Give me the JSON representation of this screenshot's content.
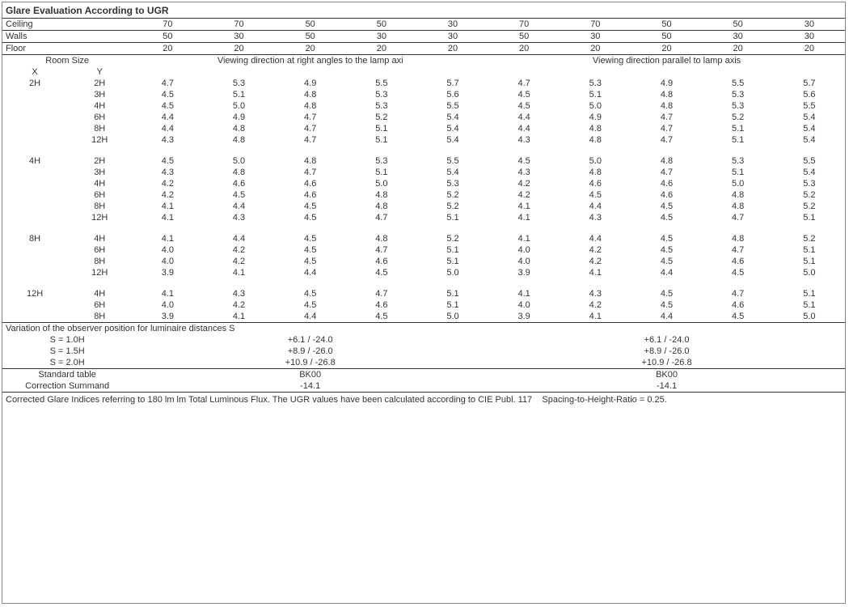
{
  "title": "Glare Evaluation According to UGR",
  "header_rows": {
    "ceiling": {
      "label": "Ceiling",
      "left": [
        "70",
        "70",
        "50",
        "50",
        "30"
      ],
      "right": [
        "70",
        "70",
        "50",
        "50",
        "30"
      ]
    },
    "walls": {
      "label": "Walls",
      "left": [
        "50",
        "30",
        "50",
        "30",
        "30"
      ],
      "right": [
        "50",
        "30",
        "50",
        "30",
        "30"
      ]
    },
    "floor": {
      "label": "Floor",
      "left": [
        "20",
        "20",
        "20",
        "20",
        "20"
      ],
      "right": [
        "20",
        "20",
        "20",
        "20",
        "20"
      ]
    }
  },
  "room_size_label": "Room Size",
  "x_label": "X",
  "y_label": "Y",
  "view_right_angles": "Viewing direction at right angles to the lamp axi",
  "view_parallel": "Viewing direction parallel to lamp axis",
  "groups": [
    {
      "x": "2H",
      "rows": [
        {
          "y": "2H",
          "l": [
            "4.7",
            "5.3",
            "4.9",
            "5.5",
            "5.7"
          ],
          "r": [
            "4.7",
            "5.3",
            "4.9",
            "5.5",
            "5.7"
          ]
        },
        {
          "y": "3H",
          "l": [
            "4.5",
            "5.1",
            "4.8",
            "5.3",
            "5.6"
          ],
          "r": [
            "4.5",
            "5.1",
            "4.8",
            "5.3",
            "5.6"
          ]
        },
        {
          "y": "4H",
          "l": [
            "4.5",
            "5.0",
            "4.8",
            "5.3",
            "5.5"
          ],
          "r": [
            "4.5",
            "5.0",
            "4.8",
            "5.3",
            "5.5"
          ]
        },
        {
          "y": "6H",
          "l": [
            "4.4",
            "4.9",
            "4.7",
            "5.2",
            "5.4"
          ],
          "r": [
            "4.4",
            "4.9",
            "4.7",
            "5.2",
            "5.4"
          ]
        },
        {
          "y": "8H",
          "l": [
            "4.4",
            "4.8",
            "4.7",
            "5.1",
            "5.4"
          ],
          "r": [
            "4.4",
            "4.8",
            "4.7",
            "5.1",
            "5.4"
          ]
        },
        {
          "y": "12H",
          "l": [
            "4.3",
            "4.8",
            "4.7",
            "5.1",
            "5.4"
          ],
          "r": [
            "4.3",
            "4.8",
            "4.7",
            "5.1",
            "5.4"
          ]
        }
      ]
    },
    {
      "x": "4H",
      "rows": [
        {
          "y": "2H",
          "l": [
            "4.5",
            "5.0",
            "4.8",
            "5.3",
            "5.5"
          ],
          "r": [
            "4.5",
            "5.0",
            "4.8",
            "5.3",
            "5.5"
          ]
        },
        {
          "y": "3H",
          "l": [
            "4.3",
            "4.8",
            "4.7",
            "5.1",
            "5.4"
          ],
          "r": [
            "4.3",
            "4.8",
            "4.7",
            "5.1",
            "5.4"
          ]
        },
        {
          "y": "4H",
          "l": [
            "4.2",
            "4.6",
            "4.6",
            "5.0",
            "5.3"
          ],
          "r": [
            "4.2",
            "4.6",
            "4.6",
            "5.0",
            "5.3"
          ]
        },
        {
          "y": "6H",
          "l": [
            "4.2",
            "4.5",
            "4.6",
            "4.8",
            "5.2"
          ],
          "r": [
            "4.2",
            "4.5",
            "4.6",
            "4.8",
            "5.2"
          ]
        },
        {
          "y": "8H",
          "l": [
            "4.1",
            "4.4",
            "4.5",
            "4.8",
            "5.2"
          ],
          "r": [
            "4.1",
            "4.4",
            "4.5",
            "4.8",
            "5.2"
          ]
        },
        {
          "y": "12H",
          "l": [
            "4.1",
            "4.3",
            "4.5",
            "4.7",
            "5.1"
          ],
          "r": [
            "4.1",
            "4.3",
            "4.5",
            "4.7",
            "5.1"
          ]
        }
      ]
    },
    {
      "x": "8H",
      "rows": [
        {
          "y": "4H",
          "l": [
            "4.1",
            "4.4",
            "4.5",
            "4.8",
            "5.2"
          ],
          "r": [
            "4.1",
            "4.4",
            "4.5",
            "4.8",
            "5.2"
          ]
        },
        {
          "y": "6H",
          "l": [
            "4.0",
            "4.2",
            "4.5",
            "4.7",
            "5.1"
          ],
          "r": [
            "4.0",
            "4.2",
            "4.5",
            "4.7",
            "5.1"
          ]
        },
        {
          "y": "8H",
          "l": [
            "4.0",
            "4.2",
            "4.5",
            "4.6",
            "5.1"
          ],
          "r": [
            "4.0",
            "4.2",
            "4.5",
            "4.6",
            "5.1"
          ]
        },
        {
          "y": "12H",
          "l": [
            "3.9",
            "4.1",
            "4.4",
            "4.5",
            "5.0"
          ],
          "r": [
            "3.9",
            "4.1",
            "4.4",
            "4.5",
            "5.0"
          ]
        }
      ]
    },
    {
      "x": "12H",
      "rows": [
        {
          "y": "4H",
          "l": [
            "4.1",
            "4.3",
            "4.5",
            "4.7",
            "5.1"
          ],
          "r": [
            "4.1",
            "4.3",
            "4.5",
            "4.7",
            "5.1"
          ]
        },
        {
          "y": "6H",
          "l": [
            "4.0",
            "4.2",
            "4.5",
            "4.6",
            "5.1"
          ],
          "r": [
            "4.0",
            "4.2",
            "4.5",
            "4.6",
            "5.1"
          ]
        },
        {
          "y": "8H",
          "l": [
            "3.9",
            "4.1",
            "4.4",
            "4.5",
            "5.0"
          ],
          "r": [
            "3.9",
            "4.1",
            "4.4",
            "4.5",
            "5.0"
          ]
        }
      ]
    }
  ],
  "observer_title": "Variation of the observer position for luminaire distances S",
  "observer_rows": [
    {
      "s": "S = 1.0H",
      "l": "+6.1 / -24.0",
      "r": "+6.1 / -24.0"
    },
    {
      "s": "S = 1.5H",
      "l": "+8.9 / -26.0",
      "r": "+8.9 / -26.0"
    },
    {
      "s": "S = 2.0H",
      "l": "+10.9 / -26.8",
      "r": "+10.9 / -26.8"
    }
  ],
  "std_table_label": "Standard table",
  "std_table_l": "BK00",
  "std_table_r": "BK00",
  "corr_label": "Correction Summand",
  "corr_l": "-14.1",
  "corr_r": "-14.1",
  "footnote": "Corrected Glare Indices referring to 180 lm lm Total Luminous Flux. The UGR values have been calculated according to CIE Publ. 117    Spacing-to-Height-Ratio = 0.25."
}
